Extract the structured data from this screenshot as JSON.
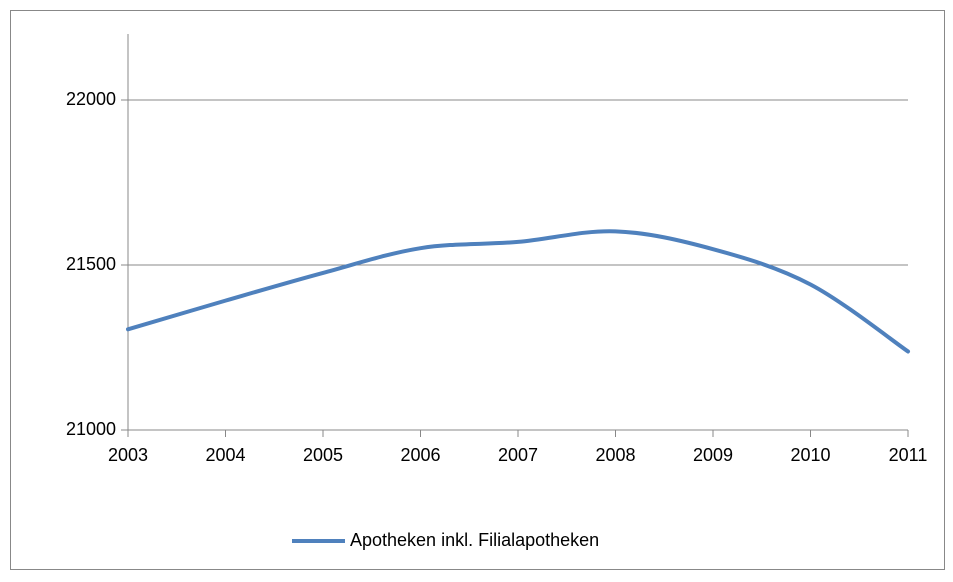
{
  "chart_data": {
    "type": "line",
    "categories": [
      "2003",
      "2004",
      "2005",
      "2006",
      "2007",
      "2008",
      "2009",
      "2010",
      "2011"
    ],
    "series": [
      {
        "name": "Apotheken inkl. Filialapotheken",
        "color": "#4f81bd",
        "values": [
          21305,
          21392,
          21476,
          21551,
          21570,
          21602,
          21548,
          21441,
          21238
        ]
      }
    ],
    "ylim": [
      21000,
      22200
    ],
    "yticks": [
      21000,
      21500,
      22000
    ],
    "grid": true,
    "smooth": true,
    "legend": "bottom"
  }
}
